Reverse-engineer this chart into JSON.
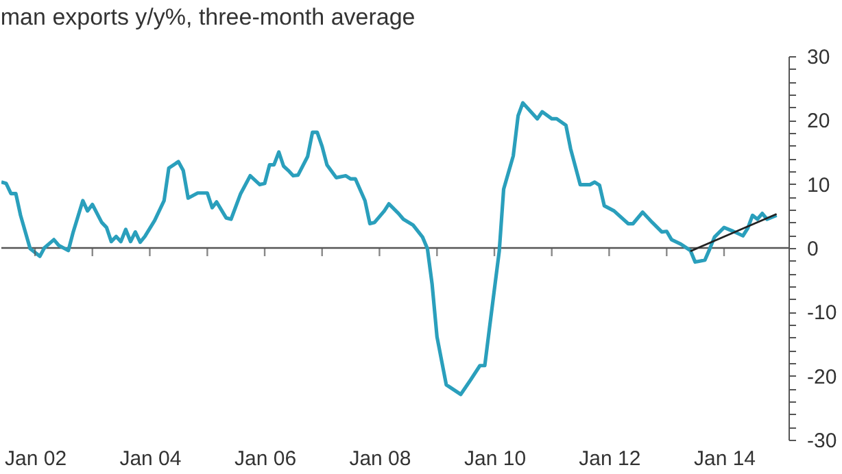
{
  "chart_data": {
    "type": "line",
    "title": "man exports y/y%, three-month average",
    "x": [
      "2001-06",
      "2001-07",
      "2001-08",
      "2001-09",
      "2001-10",
      "2001-12",
      "2002-02",
      "2002-03",
      "2002-05",
      "2002-06",
      "2002-08",
      "2002-09",
      "2002-11",
      "2002-12",
      "2003-01",
      "2003-03",
      "2003-04",
      "2003-05",
      "2003-06",
      "2003-07",
      "2003-08",
      "2003-09",
      "2003-10",
      "2003-11",
      "2003-12",
      "2004-02",
      "2004-04",
      "2004-05",
      "2004-07",
      "2004-08",
      "2004-09",
      "2004-11",
      "2005-01",
      "2005-02",
      "2005-03",
      "2005-05",
      "2005-06",
      "2005-08",
      "2005-10",
      "2005-12",
      "2006-01",
      "2006-02",
      "2006-03",
      "2006-04",
      "2006-05",
      "2006-06",
      "2006-07",
      "2006-08",
      "2006-10",
      "2006-11",
      "2006-12",
      "2007-01",
      "2007-02",
      "2007-04",
      "2007-06",
      "2007-07",
      "2007-08",
      "2007-10",
      "2007-11",
      "2007-12",
      "2008-02",
      "2008-03",
      "2008-05",
      "2008-06",
      "2008-08",
      "2008-10",
      "2008-11",
      "2008-12",
      "2009-01",
      "2009-03",
      "2009-06",
      "2009-08",
      "2009-10",
      "2009-11",
      "2009-12",
      "2010-02",
      "2010-03",
      "2010-05",
      "2010-06",
      "2010-07",
      "2010-10",
      "2010-11",
      "2011-01",
      "2011-02",
      "2011-04",
      "2011-05",
      "2011-07",
      "2011-09",
      "2011-10",
      "2011-11",
      "2011-12",
      "2012-02",
      "2012-05",
      "2012-06",
      "2012-08",
      "2012-10",
      "2012-12",
      "2013-01",
      "2013-02",
      "2013-04",
      "2013-06",
      "2013-07",
      "2013-09",
      "2013-10",
      "2013-11",
      "2014-01",
      "2014-03",
      "2014-05",
      "2014-06",
      "2014-07",
      "2014-08",
      "2014-09",
      "2014-10",
      "2014-12"
    ],
    "series": [
      {
        "color": "#2a9fbc",
        "values": [
          10.3,
          10.1,
          8.5,
          8.5,
          5.1,
          -0.1,
          -1.3,
          0,
          1.3,
          0.4,
          -0.4,
          2.5,
          7.4,
          5.8,
          6.8,
          4,
          3.2,
          1,
          1.8,
          1,
          2.9,
          1,
          2.5,
          0.9,
          1.8,
          4.3,
          7.4,
          12.5,
          13.5,
          12.1,
          7.8,
          8.6,
          8.6,
          6.3,
          7.2,
          4.7,
          4.5,
          8.5,
          11.3,
          9.9,
          10.1,
          13,
          13,
          15,
          12.8,
          12.1,
          11.3,
          11.4,
          14.3,
          18.1,
          18.1,
          15.9,
          13,
          11,
          11.3,
          10.8,
          10.8,
          7.4,
          3.8,
          4,
          5.8,
          6.9,
          5.4,
          4.5,
          3.6,
          1.7,
          -0.1,
          -5.7,
          -13.9,
          -21.4,
          -22.9,
          -20.7,
          -18.4,
          -18.4,
          -12.5,
          -0.5,
          9.2,
          14.4,
          20.7,
          22.7,
          20.2,
          21.3,
          20.2,
          20.2,
          19.2,
          15.5,
          9.9,
          9.9,
          10.3,
          9.8,
          6.6,
          5.8,
          3.8,
          3.8,
          5.6,
          4,
          2.5,
          2.6,
          1.3,
          0.6,
          -0.4,
          -2.2,
          -1.9,
          -0.2,
          1.7,
          3.2,
          2.6,
          1.9,
          3.1,
          5.1,
          4.5,
          5.4,
          4.5,
          5.1
        ]
      },
      {
        "type": "line",
        "color": "#222222",
        "x": [
          "2013-06",
          "2014-12"
        ],
        "values": [
          -0.5,
          5.3
        ]
      }
    ],
    "xlim": [
      "2001-06",
      "2015-02-15"
    ],
    "xticks": [
      {
        "value": "2002-01",
        "label": "Jan 02"
      },
      {
        "value": "2003-01",
        "label": null
      },
      {
        "value": "2004-01",
        "label": "Jan 04"
      },
      {
        "value": "2005-01",
        "label": null
      },
      {
        "value": "2006-01",
        "label": "Jan 06"
      },
      {
        "value": "2007-01",
        "label": null
      },
      {
        "value": "2008-01",
        "label": "Jan 08"
      },
      {
        "value": "2009-01",
        "label": null
      },
      {
        "value": "2010-01",
        "label": "Jan 10"
      },
      {
        "value": "2011-01",
        "label": null
      },
      {
        "value": "2012-01",
        "label": "Jan 12"
      },
      {
        "value": "2013-01",
        "label": null
      },
      {
        "value": "2014-01",
        "label": "Jan 14"
      }
    ],
    "ylim": [
      -30,
      30
    ],
    "yticks": [
      -30,
      {
        "value": -28,
        "label": null
      },
      {
        "value": -26,
        "label": null
      },
      {
        "value": -24,
        "label": null
      },
      {
        "value": -22,
        "label": null
      },
      -20,
      {
        "value": -18,
        "label": null
      },
      {
        "value": -16,
        "label": null
      },
      {
        "value": -14,
        "label": null
      },
      {
        "value": -12,
        "label": null
      },
      -10,
      {
        "value": -8,
        "label": null
      },
      {
        "value": -6,
        "label": null
      },
      {
        "value": -4,
        "label": null
      },
      {
        "value": -2,
        "label": null
      },
      0,
      {
        "value": 2,
        "label": null
      },
      {
        "value": 4,
        "label": null
      },
      {
        "value": 6,
        "label": null
      },
      {
        "value": 8,
        "label": null
      },
      10,
      {
        "value": 12,
        "label": null
      },
      {
        "value": 14,
        "label": null
      },
      {
        "value": 16,
        "label": null
      },
      {
        "value": 18,
        "label": null
      },
      20,
      {
        "value": 22,
        "label": null
      },
      {
        "value": 24,
        "label": null
      },
      {
        "value": 26,
        "label": null
      },
      {
        "value": 28,
        "label": null
      },
      30
    ],
    "ref_lines": [
      {
        "axis": "y",
        "value": 0,
        "color": "#555555"
      }
    ],
    "grid": false,
    "marker": "none",
    "line_style": "solid"
  }
}
